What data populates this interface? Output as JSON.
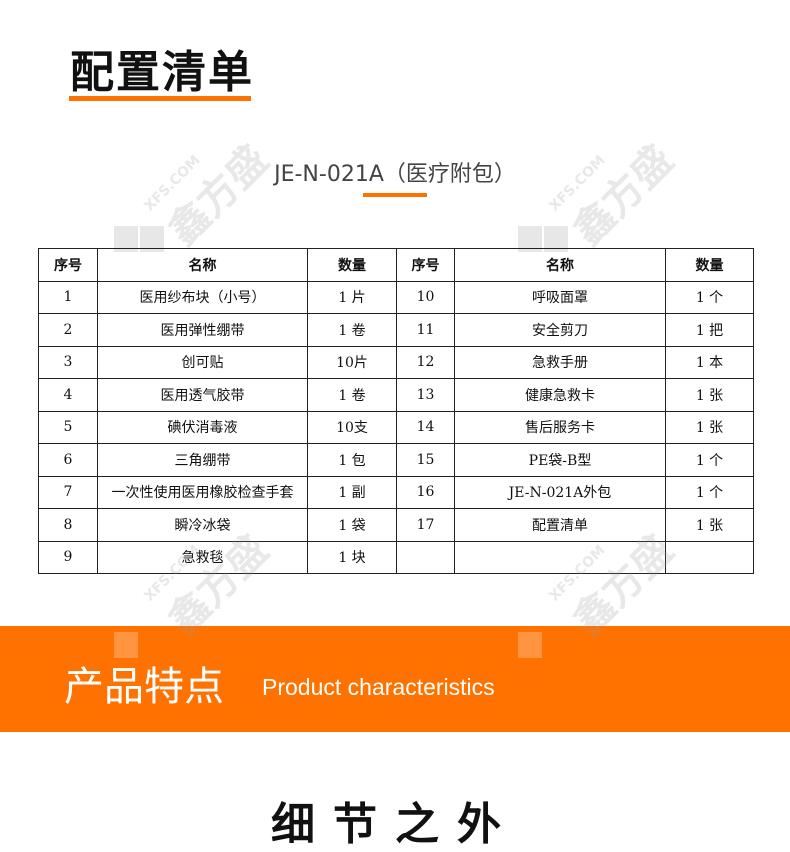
{
  "header": {
    "title": "配置清单",
    "subtitle": "JE-N-021A（医疗附包）"
  },
  "colors": {
    "accent": "#ff7200",
    "text": "#111111"
  },
  "table": {
    "headers": [
      "序号",
      "名称",
      "数量",
      "序号",
      "名称",
      "数量"
    ],
    "rows": [
      [
        "1",
        "医用纱布块（小号）",
        "1 片",
        "10",
        "呼吸面罩",
        "1 个"
      ],
      [
        "2",
        "医用弹性绷带",
        "1 卷",
        "11",
        "安全剪刀",
        "1 把"
      ],
      [
        "3",
        "创可贴",
        "10片",
        "12",
        "急救手册",
        "1 本"
      ],
      [
        "4",
        "医用透气胶带",
        "1 卷",
        "13",
        "健康急救卡",
        "1 张"
      ],
      [
        "5",
        "碘伏消毒液",
        "10支",
        "14",
        "售后服务卡",
        "1 张"
      ],
      [
        "6",
        "三角绷带",
        "1 包",
        "15",
        "PE袋-B型",
        "1 个"
      ],
      [
        "7",
        "一次性使用医用橡胶检查手套",
        "1 副",
        "16",
        "JE-N-021A外包",
        "1 个"
      ],
      [
        "8",
        "瞬冷冰袋",
        "1 袋",
        "17",
        "配置清单",
        "1 张"
      ],
      [
        "9",
        "急救毯",
        "1 块",
        "",
        "",
        ""
      ]
    ]
  },
  "band": {
    "title_cn": "产品特点",
    "title_en": "Product characteristics"
  },
  "next_section": {
    "title": "细节之外"
  },
  "watermark": {
    "text": "鑫方盛",
    "url_text": "XFS.COM"
  }
}
